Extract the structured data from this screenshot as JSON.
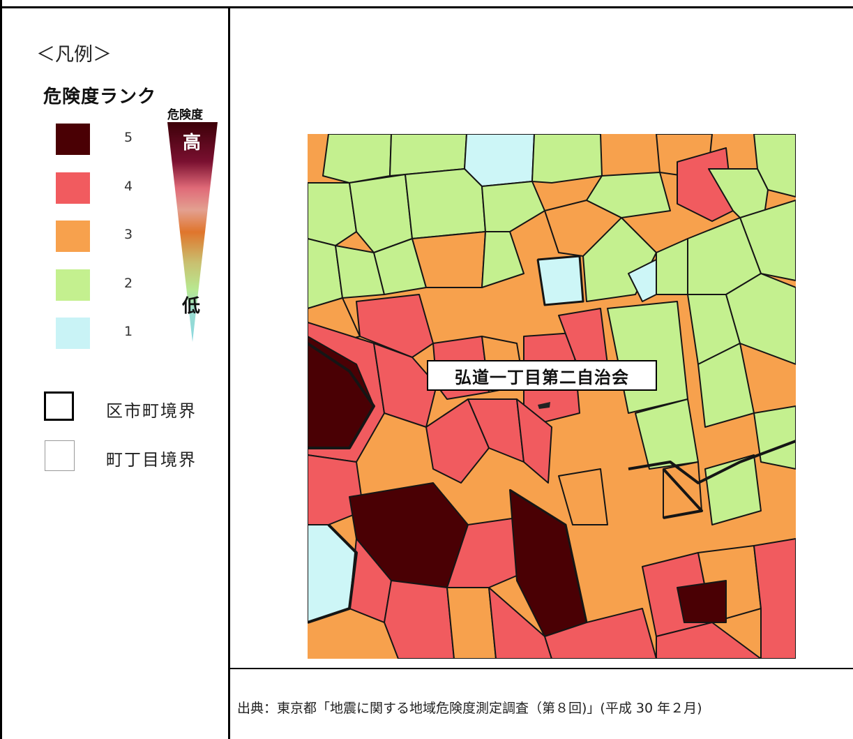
{
  "legend": {
    "heading": "＜凡例＞",
    "rank_title": "危険度ランク",
    "scale_title": "危険度",
    "scale_high": "高",
    "scale_low": "低",
    "ranks": [
      {
        "rank": "5",
        "color": "#4a0004"
      },
      {
        "rank": "4",
        "color": "#f15b5f"
      },
      {
        "rank": "3",
        "color": "#f7a14d"
      },
      {
        "rank": "2",
        "color": "#c4f08f"
      },
      {
        "rank": "1",
        "color": "#c9f3f6"
      }
    ],
    "boundaries": {
      "ward": "区市町境界",
      "chome": "町丁目境界"
    }
  },
  "map": {
    "callout": "弘道一丁目第二自治会"
  },
  "source": "出典：東京都「地震に関する地域危険度測定調査（第８回)」(平成 30 年２月)"
}
